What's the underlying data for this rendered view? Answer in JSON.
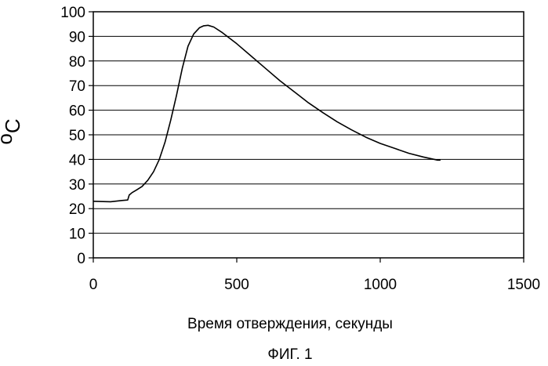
{
  "chart_data": {
    "type": "line",
    "title": "",
    "xlabel": "Время отверждения, секунды",
    "ylabel_sup": "o",
    "ylabel_main": "C",
    "caption": "ФИГ. 1",
    "xlim": [
      0,
      1500
    ],
    "ylim": [
      0,
      100
    ],
    "x_ticks": [
      0,
      500,
      1000,
      1500
    ],
    "x_tick_labels": [
      "0",
      "500",
      "1000",
      "1500"
    ],
    "y_ticks": [
      0,
      10,
      20,
      30,
      40,
      50,
      60,
      70,
      80,
      90,
      100
    ],
    "y_tick_labels": [
      "0",
      "10",
      "20",
      "30",
      "40",
      "50",
      "60",
      "70",
      "80",
      "90",
      "100"
    ],
    "grid": "horizontal",
    "legend": "none",
    "series": [
      {
        "color": "#000000",
        "x": [
          0,
          60,
          100,
          120,
          125,
          135,
          150,
          170,
          190,
          210,
          230,
          250,
          270,
          290,
          310,
          330,
          350,
          370,
          385,
          400,
          420,
          450,
          500,
          550,
          600,
          650,
          700,
          750,
          800,
          850,
          900,
          950,
          1000,
          1050,
          1100,
          1150,
          1200,
          1210
        ],
        "y": [
          23,
          22.8,
          23.3,
          23.5,
          25.5,
          26.5,
          27.5,
          29,
          31.5,
          35,
          40,
          47,
          56,
          66,
          77,
          86,
          91,
          93.5,
          94.3,
          94.5,
          93.8,
          91.5,
          87,
          82,
          77,
          72,
          67.5,
          63,
          59,
          55.3,
          52,
          49,
          46.5,
          44.5,
          42.5,
          41,
          39.7,
          39.7
        ]
      }
    ]
  }
}
